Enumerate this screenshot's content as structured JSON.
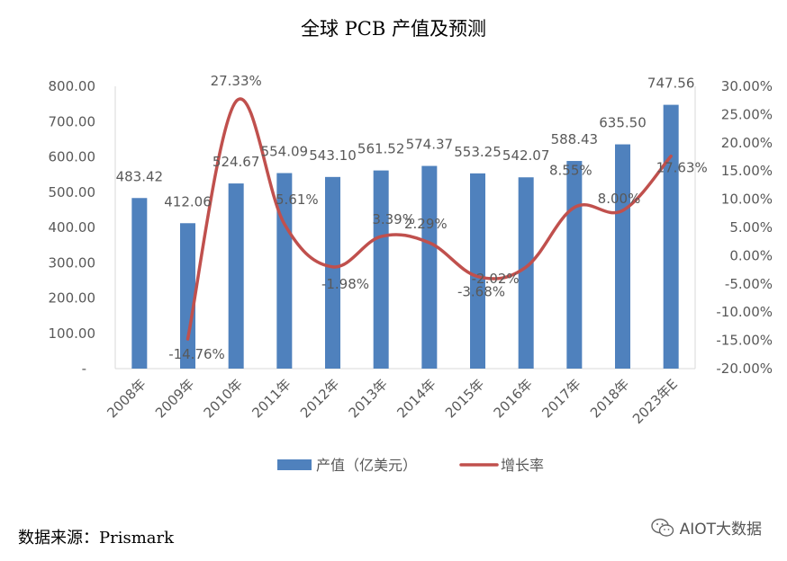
{
  "chart_data": {
    "type": "bar+line",
    "title": "全球 PCB 产值及预测",
    "categories": [
      "2008年",
      "2009年",
      "2010年",
      "2011年",
      "2012年",
      "2013年",
      "2014年",
      "2015年",
      "2016年",
      "2017年",
      "2018年",
      "2023年E"
    ],
    "series": [
      {
        "name": "产值（亿美元）",
        "type": "bar",
        "axis": "left",
        "color": "#4F81BD",
        "values": [
          483.42,
          412.06,
          524.67,
          554.09,
          543.1,
          561.52,
          574.37,
          553.25,
          542.07,
          588.43,
          635.5,
          747.56
        ],
        "labels": [
          "483.42",
          "412.06",
          "524.67",
          "554.09",
          "543.10",
          "561.52",
          "574.37",
          "553.25",
          "542.07",
          "588.43",
          "635.50",
          "747.56"
        ]
      },
      {
        "name": "增长率",
        "type": "line",
        "axis": "right",
        "color": "#C0504D",
        "values": [
          null,
          -14.76,
          27.33,
          5.61,
          -1.98,
          3.39,
          2.29,
          -3.68,
          -2.02,
          8.55,
          8.0,
          17.63
        ],
        "labels": [
          "",
          "-14.76%",
          "27.33%",
          "5.61%",
          "-1.98%",
          "3.39%",
          "2.29%",
          "-3.68%",
          "-2.02%",
          "8.55%",
          "8.00%",
          "17.63%"
        ]
      }
    ],
    "left_axis": {
      "ylim": [
        0,
        800
      ],
      "ticks": [
        "-",
        "100.00",
        "200.00",
        "300.00",
        "400.00",
        "500.00",
        "600.00",
        "700.00",
        "800.00"
      ]
    },
    "right_axis": {
      "ylim": [
        -20,
        30
      ],
      "ticks": [
        "-20.00%",
        "-15.00%",
        "-10.00%",
        "-5.00%",
        "0.00%",
        "5.00%",
        "10.00%",
        "15.00%",
        "20.00%",
        "25.00%",
        "30.00%"
      ]
    },
    "legend": {
      "placement": "bottom",
      "entries": [
        "产值（亿美元）",
        "增长率"
      ]
    },
    "grid": false
  },
  "source_note": "数据来源：Prismark",
  "watermark": {
    "text": "AIOT大数据",
    "icon": "wechat-icon"
  }
}
